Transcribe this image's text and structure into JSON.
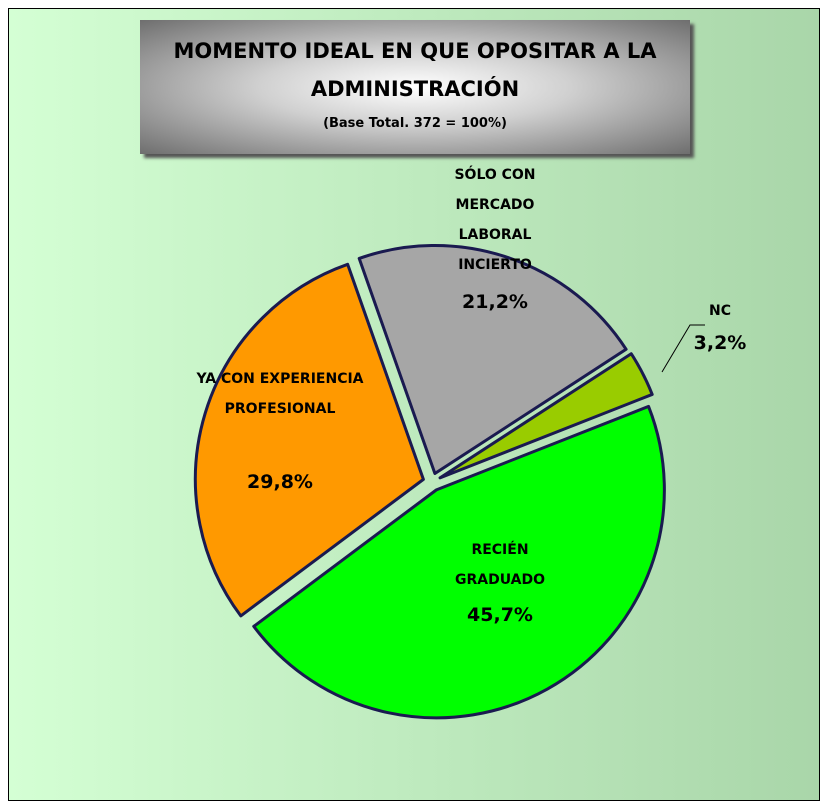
{
  "chart_data": {
    "type": "pie",
    "title": "MOMENTO IDEAL EN QUE OPOSITAR A LA ADMINISTRACIÓN",
    "subtitle": "(Base Total. 372 = 100%)",
    "categories": [
      "NC",
      "RECIÉN GRADUADO",
      "YA CON EXPERIENCIA PROFESIONAL",
      "SÓLO CON MERCADO LABORAL INCIERTO"
    ],
    "values": [
      3.2,
      45.7,
      29.8,
      21.2
    ],
    "value_labels": [
      "3,2%",
      "45,7%",
      "29,8%",
      "21,2%"
    ],
    "colors": [
      "#99cc00",
      "#00ff00",
      "#ff9900",
      "#a6a6a6"
    ]
  }
}
